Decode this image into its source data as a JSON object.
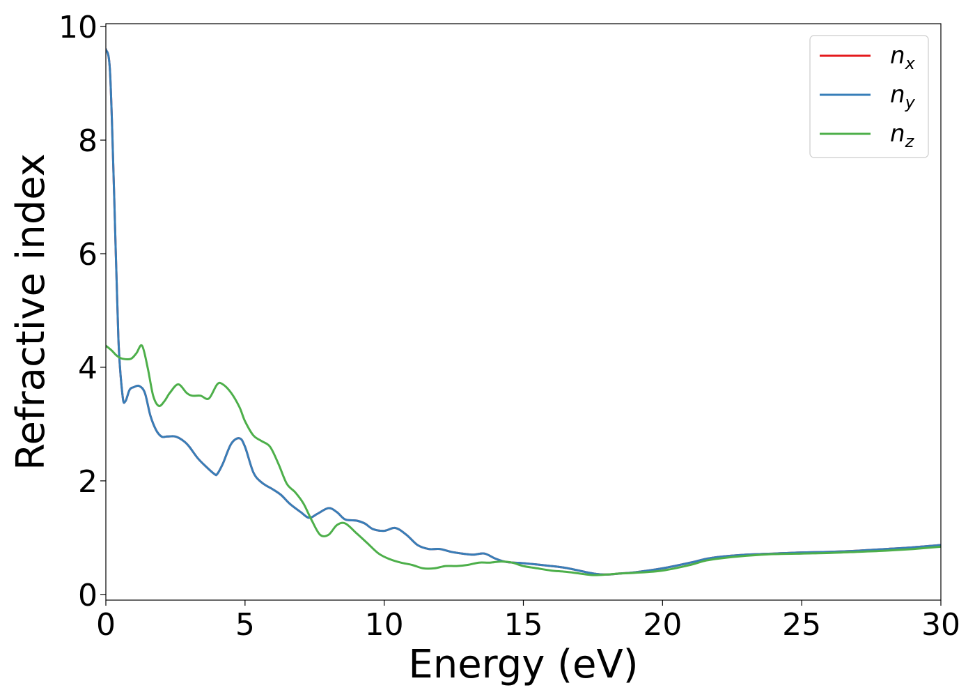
{
  "chart_data": {
    "type": "line",
    "xlabel": "Energy (eV)",
    "ylabel": "Refractive index",
    "xlim": [
      0,
      30
    ],
    "ylim": [
      -0.1,
      10.05
    ],
    "xticks": [
      "0",
      "5",
      "10",
      "15",
      "20",
      "25",
      "30"
    ],
    "yticks": [
      "0",
      "2",
      "4",
      "6",
      "8",
      "10"
    ],
    "grid": false,
    "legend_position": "top-right",
    "series": [
      {
        "name": "n_x",
        "label_main": "n",
        "label_sub": "x",
        "color": "#e41a1c",
        "x": [
          0,
          0.15,
          0.3,
          0.45,
          0.6,
          0.7,
          0.85,
          1.0,
          1.2,
          1.4,
          1.6,
          1.8,
          2.0,
          2.2,
          2.5,
          2.8,
          3.0,
          3.3,
          3.6,
          3.9,
          4.0,
          4.2,
          4.5,
          4.8,
          5.0,
          5.3,
          5.6,
          6.0,
          6.3,
          6.6,
          7.0,
          7.3,
          7.6,
          8.0,
          8.3,
          8.6,
          9.0,
          9.3,
          9.6,
          10.0,
          10.4,
          10.8,
          11.2,
          11.6,
          12.0,
          12.4,
          12.8,
          13.2,
          13.6,
          14.0,
          14.4,
          15.0,
          16.0,
          16.5,
          17.0,
          17.5,
          18.0,
          18.5,
          19.0,
          20.0,
          21.0,
          21.5,
          22.0,
          23.0,
          24.0,
          25.0,
          26.0,
          27.0,
          28.0,
          29.0,
          30.0
        ],
        "values": [
          9.6,
          9.2,
          7.0,
          4.5,
          3.5,
          3.4,
          3.6,
          3.65,
          3.67,
          3.55,
          3.15,
          2.9,
          2.78,
          2.78,
          2.78,
          2.7,
          2.6,
          2.4,
          2.25,
          2.12,
          2.12,
          2.3,
          2.65,
          2.75,
          2.6,
          2.15,
          1.97,
          1.85,
          1.75,
          1.6,
          1.45,
          1.35,
          1.42,
          1.52,
          1.45,
          1.32,
          1.3,
          1.25,
          1.15,
          1.12,
          1.17,
          1.05,
          0.87,
          0.8,
          0.8,
          0.75,
          0.72,
          0.7,
          0.72,
          0.63,
          0.57,
          0.55,
          0.5,
          0.47,
          0.42,
          0.37,
          0.35,
          0.37,
          0.39,
          0.46,
          0.56,
          0.62,
          0.66,
          0.7,
          0.72,
          0.74,
          0.75,
          0.77,
          0.8,
          0.83,
          0.87
        ]
      },
      {
        "name": "n_y",
        "label_main": "n",
        "label_sub": "y",
        "color": "#377eb8",
        "x": [
          0,
          0.15,
          0.3,
          0.45,
          0.6,
          0.7,
          0.85,
          1.0,
          1.2,
          1.4,
          1.6,
          1.8,
          2.0,
          2.2,
          2.5,
          2.8,
          3.0,
          3.3,
          3.6,
          3.9,
          4.0,
          4.2,
          4.5,
          4.8,
          5.0,
          5.3,
          5.6,
          6.0,
          6.3,
          6.6,
          7.0,
          7.3,
          7.6,
          8.0,
          8.3,
          8.6,
          9.0,
          9.3,
          9.6,
          10.0,
          10.4,
          10.8,
          11.2,
          11.6,
          12.0,
          12.4,
          12.8,
          13.2,
          13.6,
          14.0,
          14.4,
          15.0,
          16.0,
          16.5,
          17.0,
          17.5,
          18.0,
          18.5,
          19.0,
          20.0,
          21.0,
          21.5,
          22.0,
          23.0,
          24.0,
          25.0,
          26.0,
          27.0,
          28.0,
          29.0,
          30.0
        ],
        "values": [
          9.6,
          9.2,
          7.0,
          4.5,
          3.5,
          3.4,
          3.6,
          3.65,
          3.67,
          3.55,
          3.15,
          2.9,
          2.78,
          2.78,
          2.78,
          2.7,
          2.6,
          2.4,
          2.25,
          2.12,
          2.12,
          2.3,
          2.65,
          2.75,
          2.6,
          2.15,
          1.97,
          1.85,
          1.75,
          1.6,
          1.45,
          1.35,
          1.42,
          1.52,
          1.45,
          1.32,
          1.3,
          1.25,
          1.15,
          1.12,
          1.17,
          1.05,
          0.87,
          0.8,
          0.8,
          0.75,
          0.72,
          0.7,
          0.72,
          0.63,
          0.57,
          0.55,
          0.5,
          0.47,
          0.42,
          0.37,
          0.35,
          0.37,
          0.39,
          0.46,
          0.56,
          0.62,
          0.66,
          0.7,
          0.72,
          0.74,
          0.75,
          0.77,
          0.8,
          0.83,
          0.87
        ]
      },
      {
        "name": "n_z",
        "label_main": "n",
        "label_sub": "z",
        "color": "#4daf4a",
        "x": [
          0,
          0.2,
          0.4,
          0.6,
          0.9,
          1.1,
          1.3,
          1.5,
          1.7,
          1.9,
          2.1,
          2.3,
          2.6,
          2.9,
          3.1,
          3.4,
          3.7,
          4.0,
          4.2,
          4.5,
          4.8,
          5.0,
          5.3,
          5.6,
          5.9,
          6.2,
          6.5,
          6.8,
          7.1,
          7.4,
          7.7,
          8.0,
          8.3,
          8.6,
          9.0,
          9.4,
          9.8,
          10.2,
          10.6,
          11.0,
          11.4,
          11.8,
          12.2,
          12.6,
          13.0,
          13.4,
          13.8,
          14.2,
          14.6,
          15.0,
          15.5,
          16.0,
          16.5,
          17.0,
          17.5,
          18.0,
          18.5,
          19.0,
          20.0,
          21.0,
          21.5,
          22.0,
          23.0,
          24.0,
          25.0,
          26.0,
          27.0,
          28.0,
          29.0,
          30.0
        ],
        "values": [
          4.38,
          4.3,
          4.2,
          4.15,
          4.15,
          4.25,
          4.38,
          4.0,
          3.5,
          3.32,
          3.4,
          3.55,
          3.7,
          3.55,
          3.5,
          3.5,
          3.45,
          3.7,
          3.7,
          3.55,
          3.3,
          3.05,
          2.8,
          2.7,
          2.6,
          2.3,
          1.95,
          1.8,
          1.6,
          1.3,
          1.05,
          1.05,
          1.22,
          1.25,
          1.08,
          0.9,
          0.72,
          0.62,
          0.56,
          0.52,
          0.46,
          0.46,
          0.5,
          0.5,
          0.52,
          0.56,
          0.56,
          0.58,
          0.56,
          0.5,
          0.46,
          0.42,
          0.4,
          0.37,
          0.34,
          0.35,
          0.37,
          0.38,
          0.42,
          0.52,
          0.59,
          0.63,
          0.68,
          0.71,
          0.72,
          0.73,
          0.75,
          0.77,
          0.8,
          0.84
        ]
      }
    ]
  }
}
